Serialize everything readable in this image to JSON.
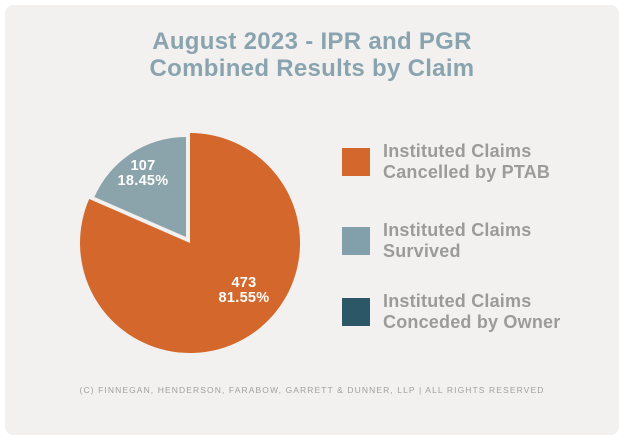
{
  "header": {
    "title_line1": "August 2023 - IPR and PGR",
    "title_line2": "Combined Results by Claim"
  },
  "chart_data": {
    "type": "pie",
    "title": "August 2023 - IPR and PGR Combined Results by Claim",
    "direction": "clockwise",
    "start_angle_deg": 0,
    "legend_position": "right",
    "slices": [
      {
        "name": "Instituted Claims Cancelled by PTAB",
        "value": 473,
        "percent_text": "81.55%",
        "color": "#D4672B"
      },
      {
        "name": "Instituted Claims Survived",
        "value": 107,
        "percent_text": "18.45%",
        "color": "#8BA3AA"
      }
    ],
    "legend": [
      {
        "line1": "Instituted Claims",
        "line2": "Cancelled by PTAB",
        "color": "#D4672B"
      },
      {
        "line1": "Instituted Claims",
        "line2": "Survived",
        "color": "#81A0AB"
      },
      {
        "line1": "Instituted Claims",
        "line2": "Conceded by Owner",
        "color": "#2C5767"
      }
    ]
  },
  "footer": {
    "copyright": "(C) FINNEGAN, HENDERSON, FARABOW, GARRETT & DUNNER, LLP | ALL RIGHTS RESERVED"
  },
  "colors": {
    "background": "#F2F1F0",
    "frame": "#FFFFFF",
    "title_text": "#8AA4AF",
    "legend_text": "#9B9B9B",
    "footer_text": "#A1A0A0",
    "pie_label_text": "#FFFFFF"
  }
}
